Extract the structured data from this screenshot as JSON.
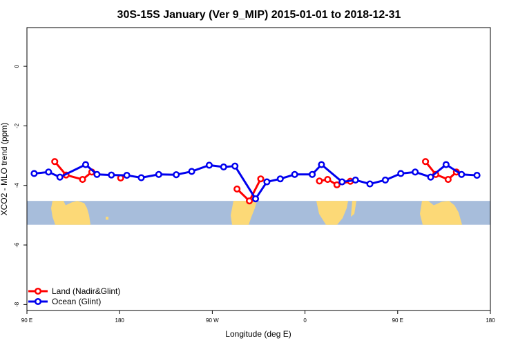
{
  "chart_data": {
    "type": "line",
    "title": "30S-15S January (Ver 9_MIP)   2015-01-01 to 2018-12-31",
    "xlabel": "Longitude (deg E)",
    "ylabel": "XCO2 - MLO trend (ppm)",
    "xlim": [
      90,
      540
    ],
    "ylim": [
      -8.2,
      1.3
    ],
    "x_ticks": [
      {
        "value": 90,
        "label": "90 E"
      },
      {
        "value": 180,
        "label": "180"
      },
      {
        "value": 270,
        "label": "90 W"
      },
      {
        "value": 360,
        "label": "0"
      },
      {
        "value": 450,
        "label": "90 E"
      },
      {
        "value": 540,
        "label": "180"
      }
    ],
    "y_ticks": [
      {
        "value": 0,
        "label": "0"
      },
      {
        "value": -2,
        "label": "-2"
      },
      {
        "value": -4,
        "label": "-4"
      },
      {
        "value": -6,
        "label": "-6"
      },
      {
        "value": -8,
        "label": "-8"
      }
    ],
    "map_strip": {
      "y_top": -4.52,
      "y_bottom": -5.32,
      "ocean_color": "#a7bddb",
      "land_color": "#fcd977"
    },
    "legend_position": "bottom-left",
    "series": [
      {
        "name": "Land (Nadir&Glint)",
        "color": "#ff0000",
        "segments": [
          [
            [
              117,
              -3.2
            ],
            [
              128,
              -3.65
            ],
            [
              144,
              -3.8
            ],
            [
              153,
              -3.55
            ]
          ],
          [
            [
              181,
              -3.75
            ]
          ],
          [
            [
              294,
              -4.12
            ],
            [
              306,
              -4.52
            ],
            [
              317,
              -3.78
            ]
          ],
          [
            [
              374,
              -3.85
            ],
            [
              382,
              -3.8
            ],
            [
              391,
              -3.98
            ],
            [
              404,
              -3.86
            ]
          ],
          [
            [
              477,
              -3.2
            ],
            [
              487,
              -3.63
            ],
            [
              499,
              -3.8
            ],
            [
              507,
              -3.55
            ]
          ]
        ]
      },
      {
        "name": "Ocean (Glint)",
        "color": "#0000ee",
        "segments": [
          [
            [
              97,
              -3.6
            ],
            [
              111,
              -3.55
            ],
            [
              122,
              -3.72
            ],
            [
              147,
              -3.3
            ],
            [
              158,
              -3.63
            ],
            [
              172,
              -3.65
            ],
            [
              187,
              -3.66
            ],
            [
              201,
              -3.74
            ],
            [
              218,
              -3.63
            ],
            [
              235,
              -3.64
            ],
            [
              250,
              -3.53
            ],
            [
              267,
              -3.32
            ],
            [
              281,
              -3.38
            ],
            [
              292,
              -3.35
            ],
            [
              312,
              -4.45
            ],
            [
              323,
              -3.88
            ],
            [
              336,
              -3.78
            ],
            [
              350,
              -3.63
            ],
            [
              367,
              -3.63
            ],
            [
              376,
              -3.3
            ],
            [
              396,
              -3.88
            ],
            [
              409,
              -3.82
            ],
            [
              423,
              -3.95
            ],
            [
              438,
              -3.82
            ],
            [
              453,
              -3.6
            ],
            [
              467,
              -3.55
            ],
            [
              482,
              -3.72
            ],
            [
              497,
              -3.3
            ],
            [
              512,
              -3.63
            ],
            [
              527,
              -3.66
            ]
          ]
        ]
      }
    ]
  }
}
